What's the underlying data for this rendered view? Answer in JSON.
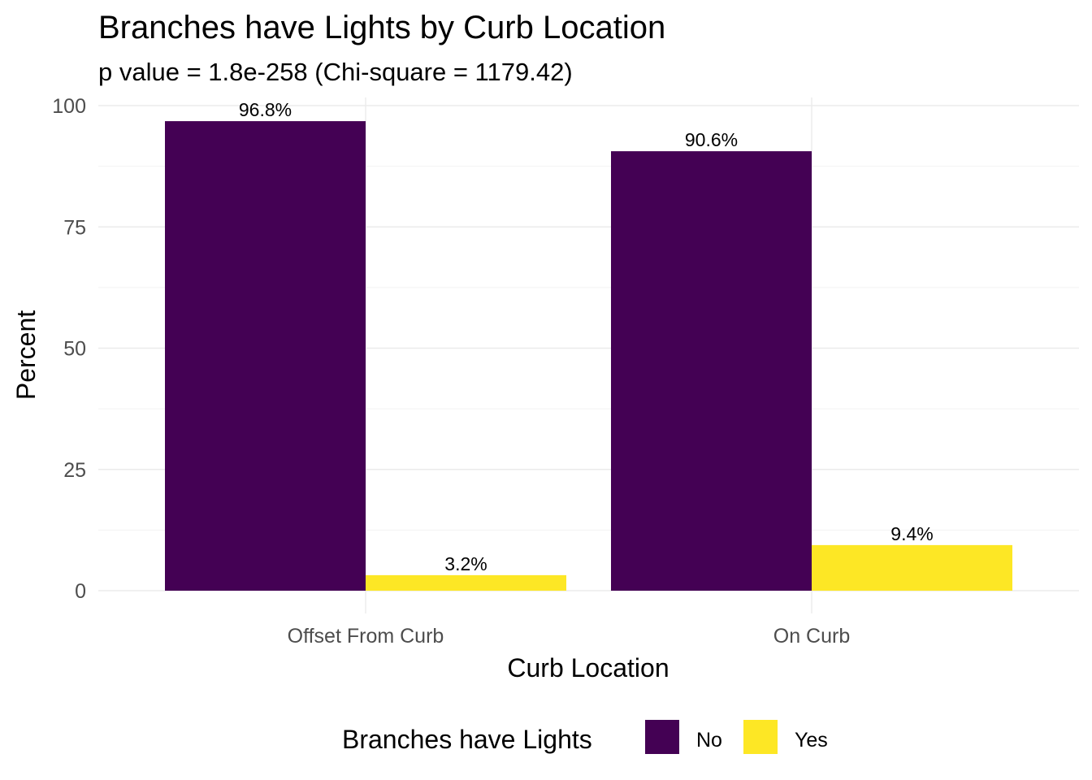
{
  "chart_data": {
    "type": "bar",
    "title": "Branches have Lights by Curb Location",
    "subtitle": "p value = 1.8e-258 (Chi-square = 1179.42)",
    "xlabel": "Curb Location",
    "ylabel": "Percent",
    "categories": [
      "Offset From Curb",
      "On Curb"
    ],
    "series": [
      {
        "name": "No",
        "values": [
          96.8,
          90.6
        ],
        "labels": [
          "96.8%",
          "90.6%"
        ],
        "color": "#440154"
      },
      {
        "name": "Yes",
        "values": [
          3.2,
          9.4
        ],
        "labels": [
          "3.2%",
          "9.4%"
        ],
        "color": "#FDE725"
      }
    ],
    "ylim": [
      0,
      100
    ],
    "yticks": [
      0,
      25,
      50,
      75,
      100
    ],
    "yticks_labels": [
      "0",
      "25",
      "50",
      "75",
      "100"
    ],
    "grid": true,
    "legend": {
      "title": "Branches have Lights",
      "position": "bottom",
      "entries": [
        "No",
        "Yes"
      ]
    }
  }
}
